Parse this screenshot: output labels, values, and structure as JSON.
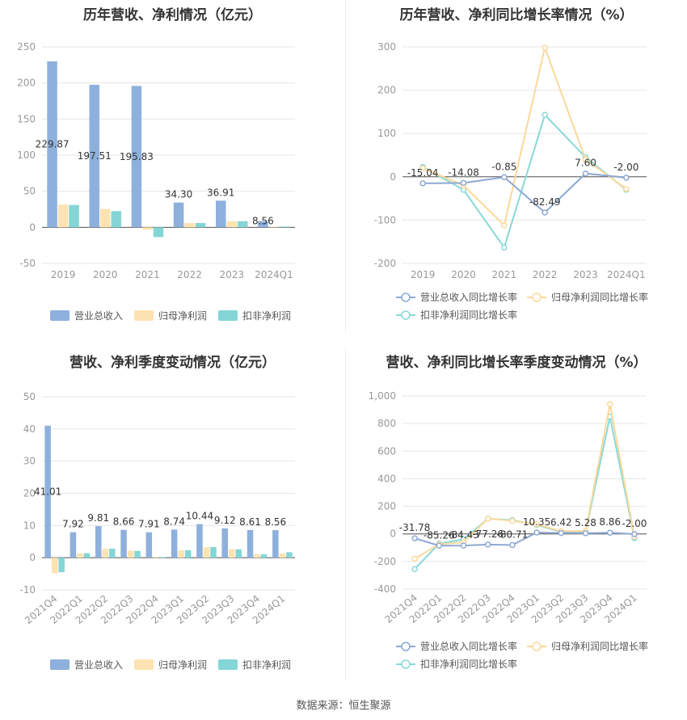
{
  "footer": "数据来源：恒生聚源",
  "colors": {
    "revenue": "#8eb0dc",
    "net_profit": "#fde3b1",
    "deducted_profit": "#84d6d6",
    "revenue_line": "#8ea8d4",
    "net_profit_line": "#fbd89a",
    "deducted_profit_line": "#89d8d8",
    "grid": "#e6e6e6",
    "axis_text": "#999999"
  },
  "chart_data": [
    {
      "id": "annual_amount",
      "type": "bar",
      "title": "历年营收、净利情况（亿元）",
      "categories": [
        "2019",
        "2020",
        "2021",
        "2022",
        "2023",
        "2024Q1"
      ],
      "ylim": [
        -50,
        250
      ],
      "yticks": [
        -50,
        0,
        50,
        100,
        150,
        200,
        250
      ],
      "series": [
        {
          "name": "营业总收入",
          "values": [
            229.87,
            197.51,
            195.83,
            34.3,
            36.91,
            8.56
          ],
          "color": "#8eb0dc",
          "labels": [
            "229.87",
            "197.51",
            "195.83",
            "34.30",
            "36.91",
            "8.56"
          ]
        },
        {
          "name": "归母净利润",
          "values": [
            31.5,
            25.5,
            -3.0,
            6.0,
            8.5,
            0.8
          ],
          "color": "#fde3b1"
        },
        {
          "name": "扣非净利润",
          "values": [
            31.0,
            22.5,
            -13.5,
            6.0,
            8.5,
            1.0
          ],
          "color": "#84d6d6"
        }
      ],
      "legend": "bottom",
      "grid": true
    },
    {
      "id": "annual_growth",
      "type": "line",
      "title": "历年营收、净利同比增长率情况（%）",
      "categories": [
        "2019",
        "2020",
        "2021",
        "2022",
        "2023",
        "2024Q1"
      ],
      "ylim": [
        -200,
        300
      ],
      "yticks": [
        -200,
        -100,
        0,
        100,
        200,
        300
      ],
      "series": [
        {
          "name": "营业总收入同比增长率",
          "values": [
            -15.04,
            -14.08,
            -0.85,
            -82.49,
            7.6,
            -2.0
          ],
          "color": "#8ea8d4",
          "labels": [
            "-15.04",
            "-14.08",
            "-0.85",
            "-82.49",
            "7.60",
            "-2.00"
          ]
        },
        {
          "name": "归母净利润同比增长率",
          "values": [
            20,
            -20,
            -112,
            298,
            40,
            -28
          ],
          "color": "#fbd89a"
        },
        {
          "name": "扣非净利润同比增长率",
          "values": [
            23,
            -30,
            -163,
            143,
            45,
            -30
          ],
          "color": "#89d8d8"
        }
      ],
      "legend": "bottom",
      "grid": true
    },
    {
      "id": "quarterly_amount",
      "type": "bar",
      "title": "营收、净利季度变动情况（亿元）",
      "categories": [
        "2021Q4",
        "2022Q1",
        "2022Q2",
        "2022Q3",
        "2022Q4",
        "2023Q1",
        "2023Q2",
        "2023Q3",
        "2023Q4",
        "2024Q1"
      ],
      "ylim": [
        -10,
        50
      ],
      "yticks": [
        -10,
        0,
        10,
        20,
        30,
        40,
        50
      ],
      "series": [
        {
          "name": "营业总收入",
          "values": [
            41.01,
            7.92,
            9.81,
            8.66,
            7.91,
            8.74,
            10.44,
            9.12,
            8.61,
            8.56
          ],
          "color": "#8eb0dc",
          "labels": [
            "41.01",
            "7.92",
            "9.81",
            "8.66",
            "7.91",
            "8.74",
            "10.44",
            "9.12",
            "8.61",
            "8.56"
          ]
        },
        {
          "name": "归母净利润",
          "values": [
            -4.8,
            1.3,
            2.8,
            2.2,
            0.2,
            2.3,
            3.3,
            2.7,
            1.1,
            1.3
          ],
          "color": "#fde3b1"
        },
        {
          "name": "扣非净利润",
          "values": [
            -4.5,
            1.4,
            2.8,
            2.1,
            0.2,
            2.3,
            3.3,
            2.6,
            1.1,
            1.7
          ],
          "color": "#84d6d6"
        }
      ],
      "legend": "bottom",
      "grid": true
    },
    {
      "id": "quarterly_growth",
      "type": "line",
      "title": "营收、净利同比增长率季度变动情况（%）",
      "categories": [
        "2021Q4",
        "2022Q1",
        "2022Q2",
        "2022Q3",
        "2022Q4",
        "2023Q1",
        "2023Q2",
        "2023Q3",
        "2023Q4",
        "2024Q1"
      ],
      "ylim": [
        -400,
        1000
      ],
      "yticks": [
        -400,
        -200,
        0,
        200,
        400,
        600,
        800,
        1000
      ],
      "series": [
        {
          "name": "营业总收入同比增长率",
          "values": [
            -31.78,
            -85.26,
            -84.43,
            -77.26,
            -80.71,
            10.35,
            6.42,
            5.28,
            8.86,
            -2.0
          ],
          "color": "#8ea8d4",
          "labels": [
            "-31.78",
            "-85.26",
            "-84.43",
            "-77.26",
            "-80.71",
            "10.35",
            "6.42",
            "5.28",
            "8.86",
            "-2.00"
          ]
        },
        {
          "name": "归母净利润同比增长率",
          "values": [
            -180,
            -75,
            -60,
            110,
            95,
            70,
            20,
            20,
            940,
            -20
          ],
          "color": "#fbd89a"
        },
        {
          "name": "扣非净利润同比增长率",
          "values": [
            -255,
            -70,
            -40,
            110,
            100,
            65,
            15,
            15,
            850,
            -30
          ],
          "color": "#89d8d8"
        }
      ],
      "legend": "bottom",
      "grid": true
    }
  ]
}
